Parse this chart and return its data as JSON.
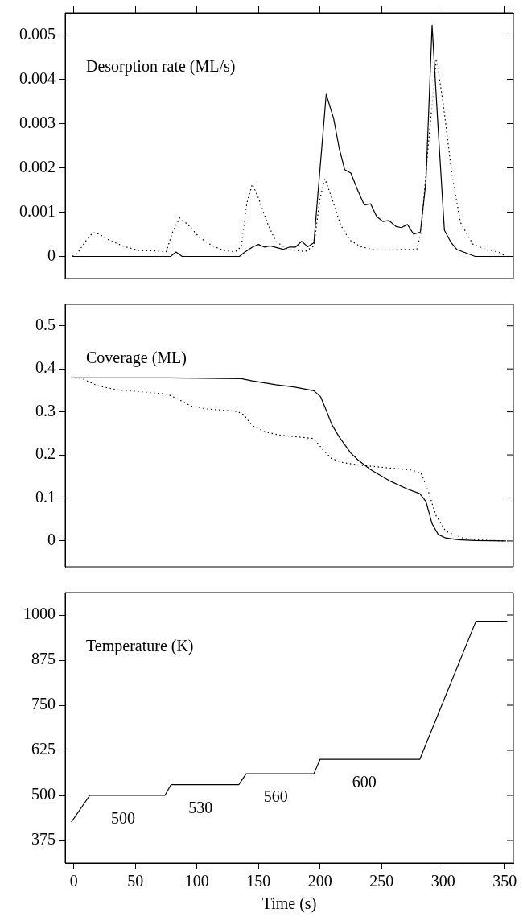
{
  "chart_data": [
    {
      "type": "line",
      "title": "Desorption rate (ML/s)",
      "xlim": [
        -7,
        357
      ],
      "xticks": [
        0,
        50,
        100,
        150,
        200,
        250,
        300,
        350
      ],
      "ylim": [
        -0.0005,
        0.0055
      ],
      "yticks": [
        0,
        0.001,
        0.002,
        0.003,
        0.004,
        0.005
      ],
      "tick_labels": "y",
      "grid": false,
      "legend": false,
      "marker": "none",
      "series": [
        {
          "color": "#000000",
          "line_style": "solid",
          "x": [
            -1,
            78.6,
            83,
            88,
            94,
            100,
            110,
            119,
            125,
            134.5,
            139,
            145,
            150,
            155,
            159.5,
            170,
            175,
            180,
            185,
            190,
            195,
            205,
            211,
            215.5,
            220,
            225,
            231,
            236,
            241,
            246,
            251,
            256,
            261.5,
            266,
            271,
            276,
            281.5,
            286,
            291,
            296,
            301,
            306.5,
            311,
            316.5,
            326,
            332,
            341.7,
            346,
            353
          ],
          "values": [
            0,
            0,
            0.0001,
            0,
            0,
            0,
            0,
            0,
            0,
            0,
            0.0001,
            0.00021,
            0.00027,
            0.00021,
            0.00024,
            0.00016,
            0.00021,
            0.00021,
            0.00034,
            0.00022,
            0.00031,
            0.00366,
            0.00312,
            0.00245,
            0.00196,
            0.00188,
            0.00147,
            0.00116,
            0.00119,
            0.0009,
            0.00079,
            0.00081,
            0.00068,
            0.00065,
            0.00072,
            0.0005,
            0.00055,
            0.00169,
            0.00522,
            0.00285,
            0.00059,
            0.00031,
            0.00016,
            0.0001,
            0,
            0,
            0,
            0,
            0
          ]
        },
        {
          "color": "#000000",
          "line_style": "dotted",
          "x": [
            -1,
            3.6,
            9.5,
            15.5,
            20,
            28.6,
            40.5,
            53.6,
            64,
            75,
            80,
            86,
            93,
            102,
            112,
            121,
            131,
            136,
            140.5,
            145,
            150,
            157,
            164,
            174,
            188,
            195,
            200,
            204,
            209.5,
            216.7,
            224,
            233,
            245,
            278.6,
            282,
            288,
            294.5,
            300,
            307,
            314,
            324,
            336,
            345,
            351
          ],
          "values": [
            0,
            0.0001,
            0.00034,
            0.00054,
            0.00051,
            0.00037,
            0.00023,
            0.00013,
            0.00013,
            0.0001,
            0.00053,
            0.00087,
            0.00071,
            0.00043,
            0.00025,
            0.00014,
            0.0001,
            0.00022,
            0.0012,
            0.00163,
            0.00132,
            0.00077,
            0.00034,
            0.00016,
            0.00011,
            0.00024,
            0.00132,
            0.00175,
            0.00132,
            0.00071,
            0.00037,
            0.00022,
            0.00015,
            0.00016,
            0.00053,
            0.00254,
            0.00447,
            0.00346,
            0.00187,
            0.00077,
            0.00028,
            0.00014,
            0.0001,
            0
          ]
        }
      ]
    },
    {
      "type": "line",
      "title": "Coverage (ML)",
      "xlim": [
        -7,
        357
      ],
      "xticks": [
        0,
        50,
        100,
        150,
        200,
        250,
        300,
        350
      ],
      "ylim": [
        -0.06,
        0.55
      ],
      "yticks": [
        0,
        0.1,
        0.2,
        0.3,
        0.4,
        0.5
      ],
      "tick_labels": "y",
      "grid": false,
      "legend": false,
      "marker": "none",
      "series": [
        {
          "color": "#000000",
          "line_style": "solid",
          "x": [
            -2,
            76,
            136,
            145,
            164,
            178.6,
            195,
            200.5,
            205,
            209.5,
            215.5,
            225,
            231,
            240.5,
            257,
            271.4,
            281,
            286,
            291,
            296,
            302,
            312,
            326,
            351
          ],
          "values": [
            0.379,
            0.379,
            0.377,
            0.372,
            0.363,
            0.358,
            0.349,
            0.335,
            0.304,
            0.271,
            0.242,
            0.204,
            0.188,
            0.167,
            0.139,
            0.12,
            0.11,
            0.092,
            0.04,
            0.015,
            0.007,
            0.003,
            0.001,
            0
          ]
        },
        {
          "color": "#000000",
          "line_style": "dotted",
          "x": [
            -2,
            7,
            19,
            35.7,
            57,
            76,
            83,
            95,
            107,
            133,
            138,
            145,
            155,
            167,
            195,
            202,
            209.5,
            219,
            233,
            255,
            274,
            282,
            288,
            294,
            302,
            316.7,
            331,
            351
          ],
          "values": [
            0.379,
            0.377,
            0.361,
            0.351,
            0.346,
            0.341,
            0.332,
            0.314,
            0.307,
            0.301,
            0.293,
            0.268,
            0.254,
            0.246,
            0.238,
            0.213,
            0.191,
            0.182,
            0.176,
            0.17,
            0.165,
            0.158,
            0.115,
            0.06,
            0.023,
            0.006,
            0.002,
            0
          ]
        }
      ]
    },
    {
      "type": "line",
      "title": "Temperature (K)",
      "xlabel": "Time (s)",
      "xlim": [
        -7,
        357
      ],
      "xticks": [
        0,
        50,
        100,
        150,
        200,
        250,
        300,
        350
      ],
      "ylim": [
        312.5,
        1062.5
      ],
      "yticks": [
        375,
        500,
        625,
        750,
        875,
        1000
      ],
      "grid": false,
      "legend": false,
      "marker": "none",
      "series": [
        {
          "color": "#000000",
          "line_style": "solid",
          "x": [
            -2,
            13,
            74,
            79,
            134,
            140,
            195,
            200,
            281,
            326.6,
            352
          ],
          "values": [
            426,
            500,
            500,
            530,
            530,
            560,
            560,
            600,
            600,
            983,
            983
          ]
        }
      ],
      "annotations": [
        {
          "text": "500",
          "x": 40,
          "y": 500
        },
        {
          "text": "530",
          "x": 103,
          "y": 530
        },
        {
          "text": "560",
          "x": 164,
          "y": 560
        },
        {
          "text": "600",
          "x": 236,
          "y": 600
        }
      ]
    }
  ]
}
